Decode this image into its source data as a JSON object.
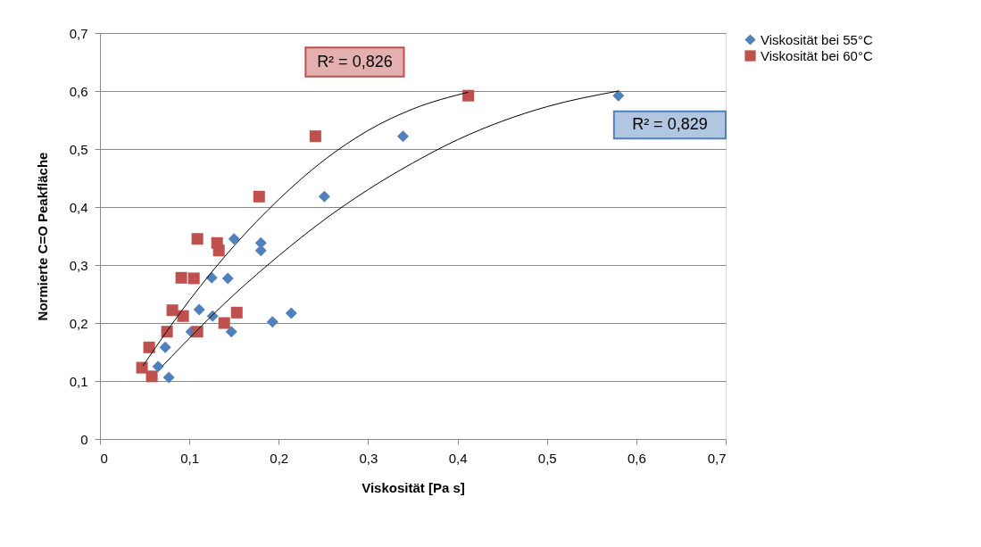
{
  "chart_data": {
    "type": "scatter",
    "xlabel": "Viskosität [Pa s]",
    "ylabel": "Normierte C=O Peakfläche",
    "xlim": [
      0,
      0.7
    ],
    "ylim": [
      0,
      0.7
    ],
    "xticks": [
      0,
      {
        "value": 0.1,
        "label": "0,1"
      },
      {
        "value": 0.2,
        "label": "0,2"
      },
      {
        "value": 0.3,
        "label": "0,3"
      },
      {
        "value": 0.4,
        "label": "0,4"
      },
      {
        "value": 0.5,
        "label": "0,5"
      },
      {
        "value": 0.6,
        "label": "0,6"
      },
      {
        "value": 0.7,
        "label": "0,7"
      }
    ],
    "yticks": [
      0,
      {
        "value": 0.1,
        "label": "0,1"
      },
      {
        "value": 0.2,
        "label": "0,2"
      },
      {
        "value": 0.3,
        "label": "0,3"
      },
      {
        "value": 0.4,
        "label": "0,4"
      },
      {
        "value": 0.5,
        "label": "0,5"
      },
      {
        "value": 0.6,
        "label": "0,6"
      },
      {
        "value": 0.7,
        "label": "0,7"
      }
    ],
    "grid": "y",
    "legend": "right",
    "series": [
      {
        "name": "Viskosität bei 55°C",
        "color": "#4f81bd",
        "marker": "diamond",
        "x": [
          0.58,
          0.339,
          0.251,
          0.15,
          0.18,
          0.18,
          0.125,
          0.143,
          0.111,
          0.126,
          0.214,
          0.193,
          0.147,
          0.102,
          0.073,
          0.065,
          0.077
        ],
        "values": [
          0.592,
          0.522,
          0.418,
          0.345,
          0.338,
          0.325,
          0.278,
          0.277,
          0.223,
          0.212,
          0.217,
          0.202,
          0.185,
          0.185,
          0.158,
          0.125,
          0.106
        ]
      },
      {
        "name": "Viskosität bei 60°C",
        "color": "#c0504d",
        "marker": "square",
        "x": [
          0.412,
          0.241,
          0.178,
          0.109,
          0.131,
          0.133,
          0.091,
          0.105,
          0.081,
          0.093,
          0.153,
          0.139,
          0.109,
          0.075,
          0.055,
          0.047,
          0.058
        ],
        "values": [
          0.592,
          0.522,
          0.418,
          0.345,
          0.338,
          0.325,
          0.278,
          0.277,
          0.222,
          0.212,
          0.218,
          0.2,
          0.185,
          0.185,
          0.158,
          0.123,
          0.108
        ]
      },
      {
        "type": "line",
        "color": "#000000",
        "x": [
          0.07,
          0.15,
          0.2,
          0.25,
          0.3,
          0.35,
          0.4,
          0.45,
          0.5,
          0.58
        ],
        "values": [
          0.126,
          0.249,
          0.316,
          0.377,
          0.43,
          0.476,
          0.516,
          0.548,
          0.573,
          0.6
        ]
      },
      {
        "type": "line",
        "color": "#000000",
        "x": [
          0.048,
          0.1,
          0.15,
          0.2,
          0.25,
          0.3,
          0.35,
          0.412
        ],
        "values": [
          0.126,
          0.239,
          0.333,
          0.413,
          0.48,
          0.532,
          0.569,
          0.598
        ]
      }
    ],
    "annotations": [
      "R² = 0,826",
      "R² = 0,829"
    ]
  }
}
